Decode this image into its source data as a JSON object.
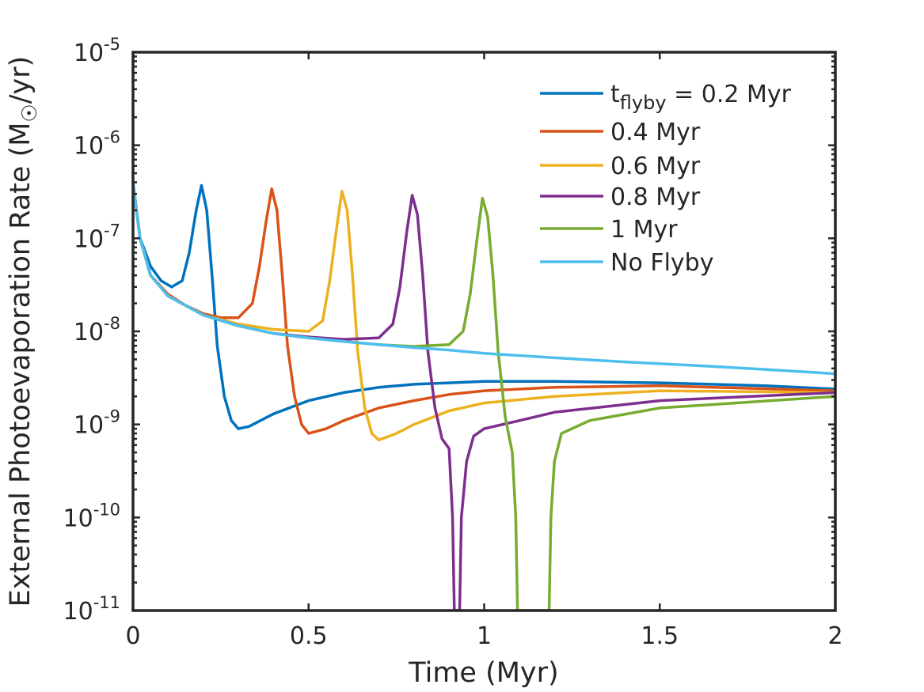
{
  "chart_data": {
    "type": "line",
    "title": "",
    "xlabel": "Time (Myr)",
    "ylabel": {
      "prefix": "External Photoevaporation Rate (M",
      "subscript": "☉",
      "suffix": "/yr)"
    },
    "xlim": [
      0,
      2
    ],
    "ylim": [
      1e-11,
      1e-05
    ],
    "yscale": "log",
    "grid": false,
    "legend_position": "top-right",
    "x_ticks": [
      {
        "value": 0,
        "label": "0"
      },
      {
        "value": 0.5,
        "label": "0.5"
      },
      {
        "value": 1,
        "label": "1"
      },
      {
        "value": 1.5,
        "label": "1.5"
      },
      {
        "value": 2,
        "label": "2"
      }
    ],
    "y_ticks": [
      {
        "value": 1e-05,
        "base": "10",
        "exp": "-5"
      },
      {
        "value": 1e-06,
        "base": "10",
        "exp": "-6"
      },
      {
        "value": 1e-07,
        "base": "10",
        "exp": "-7"
      },
      {
        "value": 1e-08,
        "base": "10",
        "exp": "-8"
      },
      {
        "value": 1e-09,
        "base": "10",
        "exp": "-9"
      },
      {
        "value": 1e-10,
        "base": "10",
        "exp": "-10"
      },
      {
        "value": 1e-11,
        "base": "10",
        "exp": "-11"
      }
    ],
    "legend_first_label": {
      "main": "t",
      "sub": "flyby",
      "rest": " = 0.2 Myr"
    },
    "series": [
      {
        "name": "t_flyby = 0.2 Myr",
        "label": "",
        "color": "#0072BD",
        "x": [
          0,
          0.02,
          0.05,
          0.08,
          0.11,
          0.14,
          0.16,
          0.18,
          0.195,
          0.21,
          0.225,
          0.24,
          0.26,
          0.28,
          0.3,
          0.33,
          0.4,
          0.5,
          0.6,
          0.7,
          0.8,
          0.9,
          1.0,
          1.2,
          1.5,
          1.8,
          2.0
        ],
        "y": [
          4e-07,
          1e-07,
          5e-08,
          3.5e-08,
          3e-08,
          3.5e-08,
          7e-08,
          2e-07,
          3.7e-07,
          2e-07,
          4e-08,
          7e-09,
          2e-09,
          1.1e-09,
          9e-10,
          9.5e-10,
          1.3e-09,
          1.8e-09,
          2.2e-09,
          2.5e-09,
          2.7e-09,
          2.8e-09,
          2.9e-09,
          2.9e-09,
          2.8e-09,
          2.6e-09,
          2.4e-09
        ]
      },
      {
        "name": "0.4 Myr",
        "label": "0.4 Myr",
        "color": "#D95319",
        "x": [
          0,
          0.02,
          0.05,
          0.1,
          0.15,
          0.2,
          0.25,
          0.3,
          0.34,
          0.36,
          0.38,
          0.395,
          0.41,
          0.425,
          0.44,
          0.46,
          0.48,
          0.5,
          0.55,
          0.6,
          0.7,
          0.8,
          0.9,
          1.0,
          1.2,
          1.5,
          2.0
        ],
        "y": [
          4e-07,
          1e-07,
          4e-08,
          2.5e-08,
          1.9e-08,
          1.55e-08,
          1.4e-08,
          1.4e-08,
          2e-08,
          5e-08,
          1.6e-07,
          3.4e-07,
          2e-07,
          4e-08,
          7e-09,
          2e-09,
          1e-09,
          8e-10,
          9e-10,
          1.1e-09,
          1.5e-09,
          1.8e-09,
          2.1e-09,
          2.3e-09,
          2.5e-09,
          2.6e-09,
          2.3e-09
        ]
      },
      {
        "name": "0.6 Myr",
        "label": "0.6 Myr",
        "color": "#EDB120",
        "x": [
          0,
          0.02,
          0.05,
          0.1,
          0.2,
          0.3,
          0.4,
          0.5,
          0.54,
          0.56,
          0.58,
          0.595,
          0.61,
          0.625,
          0.64,
          0.66,
          0.68,
          0.7,
          0.75,
          0.8,
          0.9,
          1.0,
          1.2,
          1.5,
          2.0
        ],
        "y": [
          4e-07,
          1e-07,
          4e-08,
          2.4e-08,
          1.5e-08,
          1.2e-08,
          1.05e-08,
          1e-08,
          1.3e-08,
          3.5e-08,
          1.3e-07,
          3.2e-07,
          2e-07,
          4e-08,
          6e-09,
          1.5e-09,
          8e-10,
          6.8e-10,
          8e-10,
          1e-09,
          1.4e-09,
          1.7e-09,
          2e-09,
          2.3e-09,
          2.2e-09
        ]
      },
      {
        "name": "0.8 Myr",
        "label": "0.8 Myr",
        "color": "#7E2F8E",
        "x": [
          0,
          0.02,
          0.05,
          0.1,
          0.2,
          0.3,
          0.4,
          0.5,
          0.6,
          0.7,
          0.74,
          0.76,
          0.78,
          0.795,
          0.81,
          0.825,
          0.84,
          0.86,
          0.88,
          0.9,
          0.91,
          0.915,
          0.93,
          0.935,
          0.95,
          0.97,
          1.0,
          1.1,
          1.2,
          1.5,
          2.0
        ],
        "y": [
          4e-07,
          1e-07,
          4e-08,
          2.4e-08,
          1.5e-08,
          1.15e-08,
          9.5e-09,
          8.7e-09,
          8.2e-09,
          8.5e-09,
          1.2e-08,
          3e-08,
          1.2e-07,
          2.9e-07,
          1.8e-07,
          4e-08,
          6e-09,
          1.5e-09,
          7e-10,
          5.5e-10,
          1e-10,
          1e-11,
          1e-11,
          1e-10,
          4e-10,
          7.5e-10,
          9e-10,
          1.1e-09,
          1.35e-09,
          1.8e-09,
          2.2e-09
        ]
      },
      {
        "name": "1 Myr",
        "label": "1 Myr",
        "color": "#77AC30",
        "x": [
          0,
          0.02,
          0.05,
          0.1,
          0.2,
          0.3,
          0.4,
          0.5,
          0.6,
          0.7,
          0.8,
          0.9,
          0.94,
          0.96,
          0.98,
          0.995,
          1.01,
          1.025,
          1.04,
          1.06,
          1.08,
          1.09,
          1.095,
          1.185,
          1.19,
          1.2,
          1.22,
          1.3,
          1.5,
          2.0
        ],
        "y": [
          4e-07,
          1e-07,
          4e-08,
          2.4e-08,
          1.5e-08,
          1.15e-08,
          9.5e-09,
          8.5e-09,
          7.8e-09,
          7.2e-09,
          6.9e-09,
          7.2e-09,
          1e-08,
          2.5e-08,
          1e-07,
          2.7e-07,
          1.7e-07,
          4e-08,
          6e-09,
          1.2e-09,
          5e-10,
          1e-10,
          1e-11,
          1e-11,
          1e-10,
          4e-10,
          8e-10,
          1.1e-09,
          1.5e-09,
          2e-09
        ]
      },
      {
        "name": "No Flyby",
        "label": "No Flyby",
        "color": "#4DBEEE",
        "x": [
          0,
          0.02,
          0.05,
          0.1,
          0.2,
          0.3,
          0.4,
          0.5,
          0.6,
          0.7,
          0.8,
          0.9,
          1.0,
          1.2,
          1.4,
          1.6,
          1.8,
          2.0
        ],
        "y": [
          4e-07,
          1e-07,
          4e-08,
          2.4e-08,
          1.5e-08,
          1.15e-08,
          9.5e-09,
          8.5e-09,
          7.8e-09,
          7.2e-09,
          6.7e-09,
          6.3e-09,
          5.8e-09,
          5.2e-09,
          4.7e-09,
          4.3e-09,
          3.9e-09,
          3.5e-09
        ]
      }
    ]
  }
}
